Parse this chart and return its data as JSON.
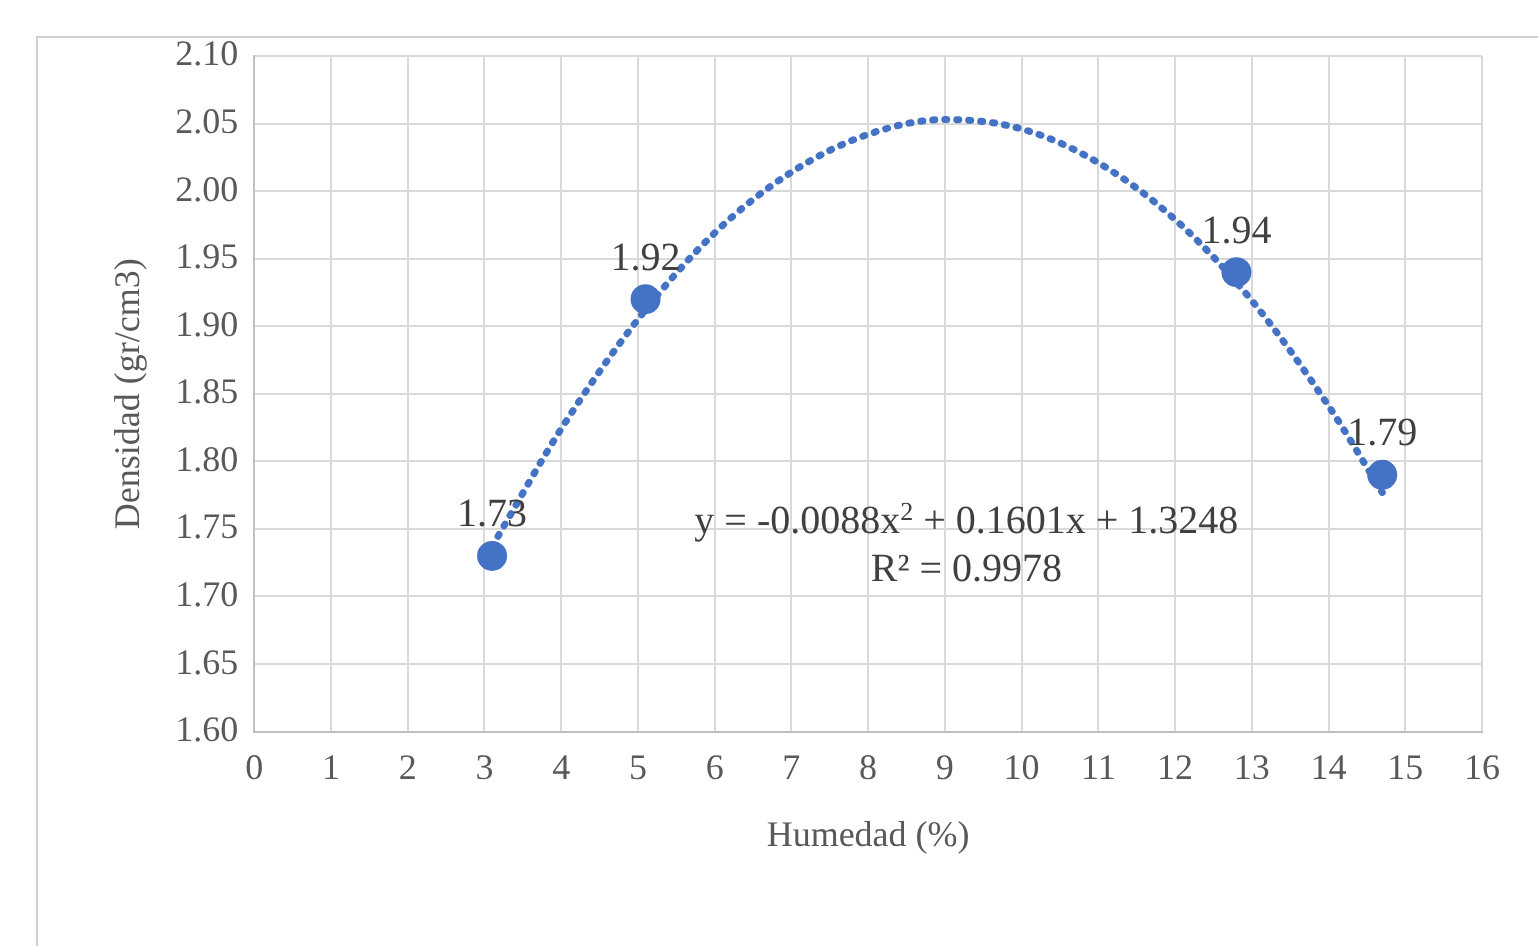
{
  "chart_data": {
    "type": "scatter",
    "xlabel": "Humedad (%)",
    "ylabel": "Densidad (gr/cm3)",
    "xlim": [
      0,
      16
    ],
    "xticks": [
      0,
      1,
      2,
      3,
      4,
      5,
      6,
      7,
      8,
      9,
      10,
      11,
      12,
      13,
      14,
      15,
      16
    ],
    "ylim": [
      1.6,
      2.1
    ],
    "yticks": [
      {
        "value": 1.6,
        "label": "1.60"
      },
      1.65,
      {
        "value": 1.7,
        "label": "1.70"
      },
      1.75,
      {
        "value": 1.8,
        "label": "1.80"
      },
      1.85,
      {
        "value": 1.9,
        "label": "1.90"
      },
      1.95,
      {
        "value": 2.0,
        "label": "2.00"
      },
      2.05,
      {
        "value": 2.1,
        "label": "2.10"
      }
    ],
    "grid": true,
    "legend": false,
    "marker": "circle",
    "annotations": [
      "y = -0.0088x$^{2}$ + 0.1601x + 1.3248",
      "R² = 0.9978"
    ],
    "series": [
      {
        "type": "scatter",
        "color": "#4472c4",
        "x": [
          3.1,
          5.1,
          12.8,
          14.7
        ],
        "values": [
          1.73,
          1.92,
          1.94,
          1.79
        ],
        "value_labels": [
          "1.73",
          "1.92",
          "1.94",
          "1.79"
        ]
      },
      {
        "type": "line",
        "color": "#4472c4",
        "line_style": "dotted",
        "marker": "none",
        "x": [
          3.1,
          4,
          5,
          6,
          7,
          8,
          9,
          10,
          11,
          12,
          13,
          14,
          14.7
        ],
        "values": [
          1.737,
          1.824,
          1.905,
          1.969,
          2.014,
          2.042,
          2.053,
          2.046,
          2.021,
          1.979,
          1.919,
          1.841,
          1.777
        ]
      }
    ]
  }
}
